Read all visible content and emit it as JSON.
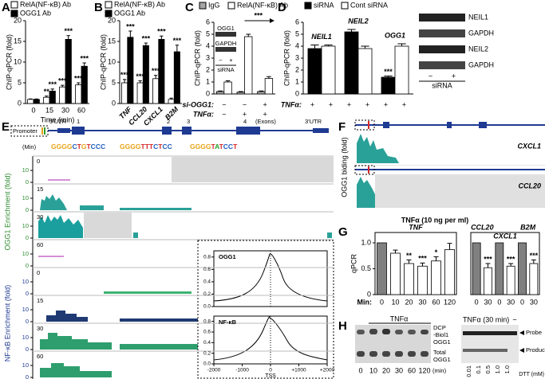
{
  "chart_data": [
    {
      "type": "bar",
      "label": "A",
      "ylabel": "ChIP-qPCR (fold)",
      "xlabel": "Time (min)",
      "categories": [
        "0",
        "15",
        "30",
        "60"
      ],
      "ylim": [
        0,
        20
      ],
      "yticks": [
        0,
        5,
        10,
        15,
        20
      ],
      "series": [
        {
          "name": "RelA(NF-κB) Ab",
          "color": "#ffffff",
          "values": [
            1,
            1.5,
            4,
            4.5
          ],
          "errors": [
            0.1,
            0.3,
            0.4,
            0.5
          ],
          "stars": [
            null,
            "**",
            "***",
            "***"
          ]
        },
        {
          "name": "OGG1 Ab",
          "color": "#000000",
          "values": [
            1,
            3,
            15.5,
            9
          ],
          "errors": [
            0.1,
            0.5,
            0.9,
            0.8
          ],
          "stars": [
            null,
            "***",
            "***",
            "***"
          ]
        }
      ]
    },
    {
      "type": "bar",
      "label": "B",
      "ylabel": "ChIP-qPCR (fold)",
      "categories": [
        "TNF",
        "CCL20",
        "CXCL1",
        "B2M"
      ],
      "ylim": [
        0,
        20
      ],
      "yticks": [
        0,
        5,
        10,
        15,
        20
      ],
      "series": [
        {
          "name": "RelA(NF-κB) Ab",
          "color": "#ffffff",
          "values": [
            5,
            5,
            6,
            1
          ],
          "errors": [
            0.8,
            0.5,
            0.8,
            0.3
          ],
          "stars": [
            "***",
            "***",
            "***",
            null
          ]
        },
        {
          "name": "OGG1 Ab",
          "color": "#000000",
          "values": [
            16,
            14,
            15.5,
            12.5
          ],
          "errors": [
            1.5,
            0.6,
            0.8,
            1.6
          ],
          "stars": [
            "***",
            "***",
            "***",
            "***"
          ]
        }
      ]
    },
    {
      "type": "bar",
      "label": "C",
      "ylabel": "ChIP-qPCR (fold)",
      "ylim": [
        0,
        6
      ],
      "yticks": [
        0,
        1,
        2,
        3,
        4,
        5,
        6
      ],
      "annotation": "***",
      "series": [
        {
          "name": "IgG",
          "color": "#a6a6a6",
          "values": [
            0.2,
            0.15,
            0.2
          ],
          "errors": [
            0.05,
            0.05,
            0.05
          ]
        },
        {
          "name": "RelA(NF-κB) Ab",
          "color": "#ffffff",
          "values": [
            1.0,
            4.8,
            1.3
          ],
          "errors": [
            0.1,
            0.2,
            0.15
          ]
        }
      ],
      "conditions": [
        {
          "name": "si-OGG1:",
          "values": [
            "−",
            "−",
            "+"
          ]
        },
        {
          "name": "TNFα:",
          "values": [
            "−",
            "+",
            "+"
          ]
        }
      ],
      "blot": {
        "bands": [
          "OGG1",
          "GAPDH"
        ],
        "lanes": [
          "−",
          "+"
        ],
        "lane_title": "siRNA"
      }
    },
    {
      "type": "bar",
      "label": "D",
      "ylabel": "ChIP-qPCR (fold)",
      "ylim": [
        0,
        6
      ],
      "yticks": [
        0,
        1,
        2,
        3,
        4,
        5,
        6
      ],
      "categories": [
        "NEIL1",
        "NEIL2",
        "OGG1"
      ],
      "series": [
        {
          "name": "siRNA",
          "color": "#000000",
          "values": [
            3.8,
            5.2,
            1.4
          ],
          "errors": [
            0.3,
            0.2,
            0.1
          ],
          "stars": [
            null,
            null,
            "***"
          ]
        },
        {
          "name": "Cont siRNA",
          "color": "#ffffff",
          "values": [
            4.0,
            3.8,
            4.0
          ],
          "errors": [
            0.1,
            0.2,
            0.2
          ]
        }
      ],
      "conditions": [
        {
          "name": "TNFα:",
          "values": [
            "+",
            "+",
            "+",
            "+",
            "+",
            "+"
          ]
        }
      ],
      "blot": {
        "bands": [
          "NEIL1",
          "GAPDH",
          "NEIL2",
          "GAPDH"
        ],
        "lanes": [
          "−",
          "+"
        ],
        "lane_title": "siRNA"
      }
    },
    {
      "type": "bar_groups",
      "label": "G",
      "title": "TNFα (10 ng per ml)",
      "ylabel": "qPCR",
      "xlabel": "Min:",
      "ylim": [
        0,
        1.2
      ],
      "yticks": [
        0,
        0.5,
        {
          "value": 1,
          "label": "1.0"
        }
      ],
      "control_color": "#808080",
      "color": "#ffffff",
      "groups": [
        {
          "name": "TNF",
          "categories": [
            "0",
            "10",
            "20",
            "30",
            "60",
            "120"
          ],
          "values": [
            1,
            0.8,
            0.6,
            0.55,
            0.65,
            0.87
          ],
          "errors": [
            null,
            0.06,
            0.07,
            0.06,
            0.08,
            0.12
          ],
          "stars": [
            null,
            null,
            "**",
            "***",
            "*",
            null
          ]
        },
        {
          "name": "CCL20",
          "categories": [
            "0",
            "30"
          ],
          "values": [
            1,
            0.52
          ],
          "errors": [
            null,
            0.08
          ],
          "stars": [
            null,
            "***"
          ]
        },
        {
          "name": "CXCL1",
          "categories": [
            "0",
            "30"
          ],
          "values": [
            1,
            0.55
          ],
          "errors": [
            null,
            0.05
          ],
          "stars": [
            null,
            "***"
          ]
        },
        {
          "name": "B2M",
          "categories": [
            "0",
            "30"
          ],
          "values": [
            1,
            0.6
          ],
          "errors": [
            null,
            0.07
          ],
          "stars": [
            null,
            "***"
          ]
        }
      ]
    }
  ],
  "panel_e": {
    "label": "E",
    "gene": {
      "promoter": "Promoter",
      "labels": [
        "5'UTR",
        "1",
        "2",
        "3",
        "4",
        "(Exons)",
        "3'UTR"
      ]
    },
    "time_label": "(Min)",
    "sequences": [
      "GGGGCTGTCCC",
      "GGGGTTTCTCC",
      "GGGGTATCCT"
    ],
    "ogg1_axis": "OGG1 Enrichment (fold)",
    "nfkb_axis": "NF-κB Enrichment (fold)",
    "ogg1_tracks": [
      "0",
      "15",
      "30",
      "60"
    ],
    "nfkb_tracks": [
      "0",
      "15",
      "30",
      "60"
    ],
    "track_ylim": [
      0,
      20
    ],
    "track_yticks": [
      0,
      10
    ],
    "profile": {
      "xlabel": "TSS",
      "xlim": [
        -2000,
        2000
      ],
      "xticks": [
        -2000,
        -1000,
        0,
        {
          "value": 1000,
          "label": "+1000"
        },
        {
          "value": 2000,
          "label": "+2000"
        }
      ],
      "plots": [
        {
          "name": "OGG1",
          "ylim": [
            0,
            0.9
          ],
          "yticks": [
            {
              "value": 0,
              "label": "0.0"
            },
            0.2,
            0.4,
            0.6,
            0.8
          ]
        },
        {
          "name": "NF-κB",
          "ylim": [
            0,
            0.9
          ],
          "yticks": [
            {
              "value": 0,
              "label": "0.0"
            },
            0.2,
            0.4,
            0.6,
            0.8
          ]
        }
      ]
    }
  },
  "panel_f": {
    "label": "F",
    "ylabel": "OGG1 biding (fold)",
    "genes": [
      "CXCL1",
      "CCL20"
    ]
  },
  "panel_h": {
    "label": "H",
    "treatment": "TNFα",
    "bands": [
      [
        "DCP",
        "-Biol1",
        "OGG1"
      ],
      [
        "Total",
        "OGG1"
      ]
    ],
    "lanes": [
      "0",
      "10",
      "20",
      "30",
      "60",
      "120"
    ],
    "lane_unit": "(min)",
    "assay_title": "TNFα (30 min)",
    "assay_control": "−",
    "products": [
      "Probe",
      "Product"
    ],
    "dtt": [
      "0.01",
      "0.1",
      "0.5",
      "1.0",
      "1.0"
    ],
    "dtt_label": "DTT (mM)"
  }
}
